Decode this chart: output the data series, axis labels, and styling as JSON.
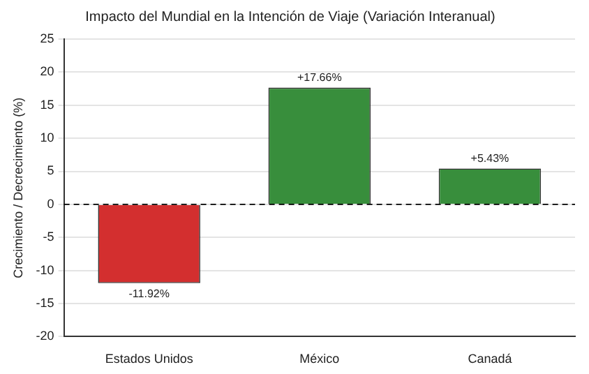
{
  "chart_data": {
    "type": "bar",
    "title": "Impacto del Mundial en la Intención de Viaje (Variación Interanual)",
    "ylabel": "Crecimiento / Decrecimiento (%)",
    "categories": [
      "Estados Unidos",
      "México",
      "Canadá"
    ],
    "values": [
      -11.92,
      17.66,
      5.43
    ],
    "colors": [
      "#d32f2f",
      "#388e3c",
      "#388e3c"
    ],
    "value_labels": [
      "-11.92%",
      "+17.66%",
      "+5.43%"
    ],
    "ylim": [
      -20,
      25
    ],
    "yticks": [
      -20,
      -15,
      -10,
      -5,
      0,
      5,
      10,
      15,
      20,
      25
    ],
    "grid": "y",
    "ref_lines": [
      {
        "axis": "y",
        "value": 0,
        "color": "#000000",
        "line_style": "dashed"
      }
    ]
  }
}
